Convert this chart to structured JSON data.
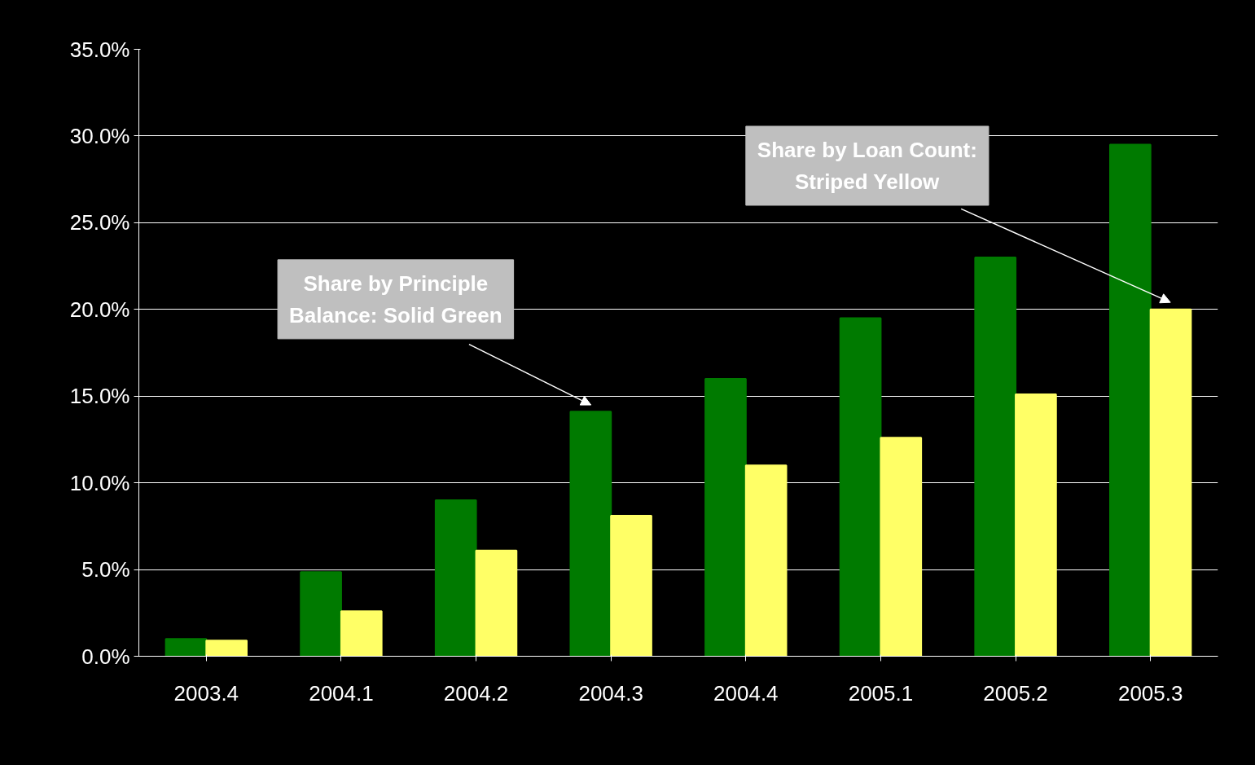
{
  "chart_data": {
    "type": "bar",
    "categories": [
      "2003.4",
      "2004.1",
      "2004.2",
      "2004.3",
      "2004.4",
      "2005.1",
      "2005.2",
      "2005.3"
    ],
    "series": [
      {
        "color": "#007a00",
        "values": [
          1.0,
          4.85,
          9.0,
          14.1,
          16.0,
          19.5,
          23.0,
          29.5
        ]
      },
      {
        "color": "#ffff66",
        "values": [
          0.9,
          2.6,
          6.1,
          8.1,
          11.0,
          12.6,
          15.1,
          20.0
        ]
      }
    ],
    "ylim": [
      0,
      35
    ],
    "yticks": [
      {
        "value": 0,
        "label": "0.0%"
      },
      {
        "value": 5,
        "label": "5.0%"
      },
      {
        "value": 10,
        "label": "10.0%"
      },
      {
        "value": 15,
        "label": "15.0%"
      },
      {
        "value": 20,
        "label": "20.0%"
      },
      {
        "value": 25,
        "label": "25.0%"
      },
      {
        "value": 30,
        "label": "30.0%"
      },
      {
        "value": 35,
        "label": "35.0%"
      }
    ],
    "grid": "y",
    "annotations": [
      "Share by Principle\nBalance: Solid Green",
      "Share by Loan Count:\nStriped Yellow"
    ]
  }
}
